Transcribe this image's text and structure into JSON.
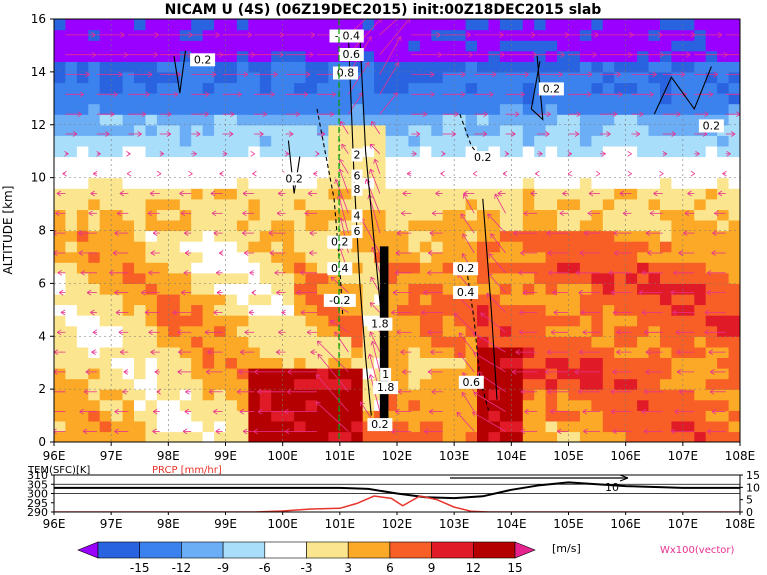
{
  "title": "NICAM U (4S) (06Z19DEC2015) init:00Z18DEC2015 slab",
  "main": {
    "ylabel": "ALTITUDE [km]"
  },
  "bottom": {
    "label_tem": "TEM(SFC)[K]",
    "label_prcp": "PRCP [mm/hr]"
  },
  "colorbar": {
    "unit": "[m/s]",
    "vector_label": "Wx100(vector)"
  },
  "colors": {
    "bg": "#ffffff",
    "text": "#000000",
    "prcp": "#e8332b",
    "vector": "#e8318f",
    "guide": "#00a000"
  },
  "chart_data": [
    {
      "type": "heatmap",
      "title": "NICAM U (4S) (06Z19DEC2015) init:00Z18DEC2015 slab",
      "xlabel": "",
      "ylabel": "ALTITUDE [km]",
      "x_ticks": [
        "96E",
        "97E",
        "98E",
        "99E",
        "100E",
        "101E",
        "102E",
        "103E",
        "104E",
        "105E",
        "106E",
        "107E",
        "108E"
      ],
      "y_ticks": [
        "0",
        "2",
        "4",
        "6",
        "8",
        "10",
        "12",
        "14",
        "16"
      ],
      "xlim": [
        96,
        108
      ],
      "ylim": [
        0,
        16
      ],
      "grid": true,
      "contour_labels": [
        {
          "text": "-0.2",
          "x": 101.1,
          "y": 15.3
        },
        {
          "text": "0.4",
          "x": 101.2,
          "y": 15.3
        },
        {
          "text": "0.6",
          "x": 101.2,
          "y": 14.6
        },
        {
          "text": "0.8",
          "x": 101.1,
          "y": 13.9
        },
        {
          "text": "0.2",
          "x": 98.6,
          "y": 14.4
        },
        {
          "text": "0.2",
          "x": 104.7,
          "y": 13.3
        },
        {
          "text": "0.2",
          "x": 107.5,
          "y": 11.9
        },
        {
          "text": "0.2",
          "x": 103.5,
          "y": 10.7
        },
        {
          "text": "0.2",
          "x": 100.2,
          "y": 9.9
        },
        {
          "text": "2",
          "x": 101.3,
          "y": 10.8
        },
        {
          "text": "6",
          "x": 101.3,
          "y": 10.0
        },
        {
          "text": "8",
          "x": 101.3,
          "y": 9.5
        },
        {
          "text": "4",
          "x": 101.3,
          "y": 8.5
        },
        {
          "text": "6",
          "x": 101.3,
          "y": 7.9
        },
        {
          "text": "0.2",
          "x": 101.0,
          "y": 7.5
        },
        {
          "text": "0.4",
          "x": 101.0,
          "y": 6.5
        },
        {
          "text": "-0.2",
          "x": 101.0,
          "y": 5.3
        },
        {
          "text": "0.2",
          "x": 103.2,
          "y": 6.5
        },
        {
          "text": "0.4",
          "x": 103.2,
          "y": 5.6
        },
        {
          "text": "0.6",
          "x": 103.3,
          "y": 2.2
        },
        {
          "text": "1.8",
          "x": 101.7,
          "y": 4.4
        },
        {
          "text": "1",
          "x": 101.8,
          "y": 2.5
        },
        {
          "text": "1.8",
          "x": 101.8,
          "y": 2.0
        },
        {
          "text": "0.2",
          "x": 101.7,
          "y": 0.6
        }
      ]
    },
    {
      "type": "line",
      "x_ticks": [
        "96E",
        "97E",
        "98E",
        "99E",
        "100E",
        "101E",
        "102E",
        "103E",
        "104E",
        "105E",
        "106E",
        "107E",
        "108E"
      ],
      "xlim": [
        96,
        108
      ],
      "series": [
        {
          "name": "TEM(SFC)[K]",
          "axis": "left",
          "ticks": [
            "290",
            "295",
            "300",
            "305",
            "310"
          ],
          "ylim": [
            290,
            310
          ],
          "x": [
            96,
            98,
            100,
            101,
            101.5,
            102,
            102.5,
            103,
            103.5,
            104,
            104.5,
            105,
            105.5,
            106,
            107,
            108
          ],
          "values": [
            303,
            303,
            303,
            303,
            302.5,
            300,
            298,
            297.5,
            298.5,
            302,
            304.5,
            306,
            305,
            304,
            303,
            303
          ]
        },
        {
          "name": "PRCP [mm/hr]",
          "axis": "right",
          "ticks": [
            "0",
            "5",
            "10",
            "15"
          ],
          "ylim": [
            0,
            15
          ],
          "x": [
            96,
            99.5,
            100,
            100.5,
            101,
            101.3,
            101.6,
            101.9,
            102.1,
            102.4,
            102.7,
            103,
            103.3,
            103.6,
            104,
            108
          ],
          "values": [
            0,
            0,
            0.4,
            1.2,
            1.5,
            3.5,
            6.5,
            5.5,
            2.5,
            6.5,
            5,
            2,
            0.3,
            0,
            0,
            0
          ]
        }
      ],
      "annotations": [
        "10"
      ]
    },
    {
      "type": "heatmap",
      "colorbar_ticks": [
        "-15",
        "-12",
        "-9",
        "-6",
        "-3",
        "3",
        "6",
        "9",
        "12",
        "15"
      ],
      "colors": [
        "#9a00ff",
        "#2a63e0",
        "#3b82ee",
        "#6caef5",
        "#a8defa",
        "#ffffff",
        "#fbe68f",
        "#fba927",
        "#f85f27",
        "#e01a26",
        "#b40000",
        "#e6228f"
      ],
      "unit": "[m/s]",
      "vector_label": "Wx100(vector)"
    }
  ]
}
